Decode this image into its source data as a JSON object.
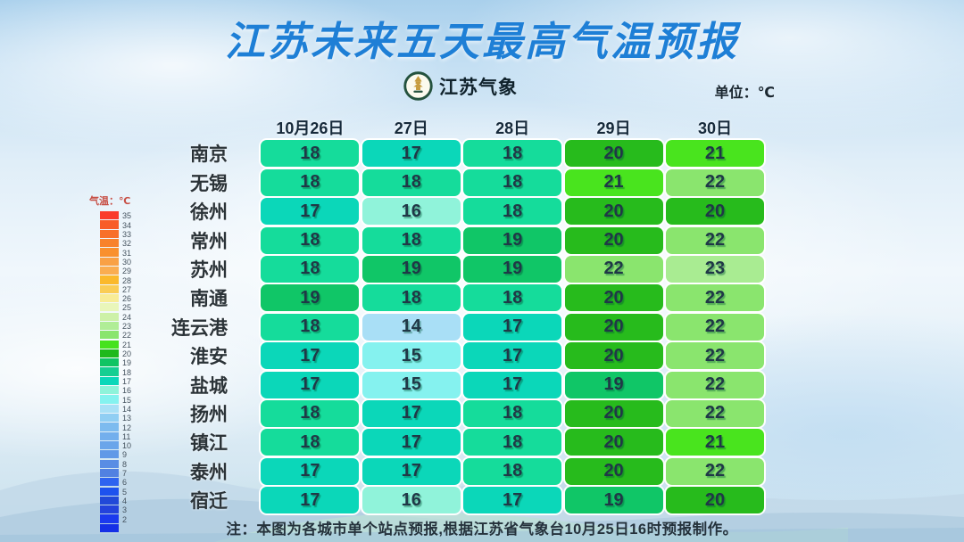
{
  "header": {
    "title": "江苏未来五天最高气温预报",
    "title_color": "#1E7FD6",
    "logo_text": "江苏气象",
    "unit_label": "单位：℃"
  },
  "legend": {
    "title": "气温：℃",
    "items": [
      {
        "label": "35",
        "color": "#FA3B2B"
      },
      {
        "label": "34",
        "color": "#F85C28"
      },
      {
        "label": "33",
        "color": "#F8702A"
      },
      {
        "label": "32",
        "color": "#F8822C"
      },
      {
        "label": "31",
        "color": "#F9902E"
      },
      {
        "label": "30",
        "color": "#F9A145"
      },
      {
        "label": "29",
        "color": "#FAAD50"
      },
      {
        "label": "28",
        "color": "#FBB92B"
      },
      {
        "label": "27",
        "color": "#FACD55"
      },
      {
        "label": "26",
        "color": "#F8EC96"
      },
      {
        "label": "25",
        "color": "#E9F6BA"
      },
      {
        "label": "24",
        "color": "#CDF1A8"
      },
      {
        "label": "23",
        "color": "#B0ED97"
      },
      {
        "label": "22",
        "color": "#8AE56E"
      },
      {
        "label": "21",
        "color": "#46E21E"
      },
      {
        "label": "20",
        "color": "#1FB91C"
      },
      {
        "label": "19",
        "color": "#10C463"
      },
      {
        "label": "18",
        "color": "#16CE92"
      },
      {
        "label": "17",
        "color": "#0BD7B9"
      },
      {
        "label": "16",
        "color": "#8EF3DA"
      },
      {
        "label": "15",
        "color": "#85F2EF"
      },
      {
        "label": "14",
        "color": "#A9E0F6"
      },
      {
        "label": "13",
        "color": "#90CEF3"
      },
      {
        "label": "12",
        "color": "#7DBBEF"
      },
      {
        "label": "11",
        "color": "#73AFED"
      },
      {
        "label": "10",
        "color": "#6AA5EA"
      },
      {
        "label": "9",
        "color": "#6199E7"
      },
      {
        "label": "8",
        "color": "#598DE4"
      },
      {
        "label": "7",
        "color": "#5181E1"
      },
      {
        "label": "6",
        "color": "#2E63F0"
      },
      {
        "label": "5",
        "color": "#1D52EE"
      },
      {
        "label": "4",
        "color": "#2149D8"
      },
      {
        "label": "3",
        "color": "#2343DC"
      },
      {
        "label": "2",
        "color": "#1B3AEE"
      },
      {
        "label": "",
        "color": "#1530E6"
      }
    ]
  },
  "chart_data": {
    "type": "heatmap",
    "title": "江苏未来五天最高气温预报",
    "unit": "℃",
    "columns": [
      "10月26日",
      "27日",
      "28日",
      "29日",
      "30日"
    ],
    "series": [
      {
        "name": "南京",
        "values": [
          18,
          17,
          18,
          20,
          21
        ]
      },
      {
        "name": "无锡",
        "values": [
          18,
          18,
          18,
          21,
          22
        ]
      },
      {
        "name": "徐州",
        "values": [
          17,
          16,
          18,
          20,
          20
        ]
      },
      {
        "name": "常州",
        "values": [
          18,
          18,
          19,
          20,
          22
        ]
      },
      {
        "name": "苏州",
        "values": [
          18,
          19,
          19,
          22,
          23
        ]
      },
      {
        "name": "南通",
        "values": [
          19,
          18,
          18,
          20,
          22
        ]
      },
      {
        "name": "连云港",
        "values": [
          18,
          14,
          17,
          20,
          22
        ]
      },
      {
        "name": "淮安",
        "values": [
          17,
          15,
          17,
          20,
          22
        ]
      },
      {
        "name": "盐城",
        "values": [
          17,
          15,
          17,
          19,
          22
        ]
      },
      {
        "name": "扬州",
        "values": [
          18,
          17,
          18,
          20,
          22
        ]
      },
      {
        "name": "镇江",
        "values": [
          18,
          17,
          18,
          20,
          21
        ]
      },
      {
        "name": "泰州",
        "values": [
          17,
          17,
          18,
          20,
          22
        ]
      },
      {
        "name": "宿迁",
        "values": [
          17,
          16,
          17,
          19,
          20
        ]
      }
    ],
    "value_colors": {
      "14": "#A9DFF6",
      "15": "#85F2EF",
      "16": "#90F3DA",
      "17": "#0BD7B9",
      "18": "#15DC9B",
      "19": "#10C667",
      "20": "#27BB1C",
      "21": "#49E41E",
      "22": "#8AE56E",
      "23": "#A9EC92"
    },
    "colorbar_range": [
      2,
      35
    ],
    "legend_position": "left"
  },
  "footer": {
    "note": "注：本图为各城市单个站点预报,根据江苏省气象台10月25日16时预报制作。"
  }
}
